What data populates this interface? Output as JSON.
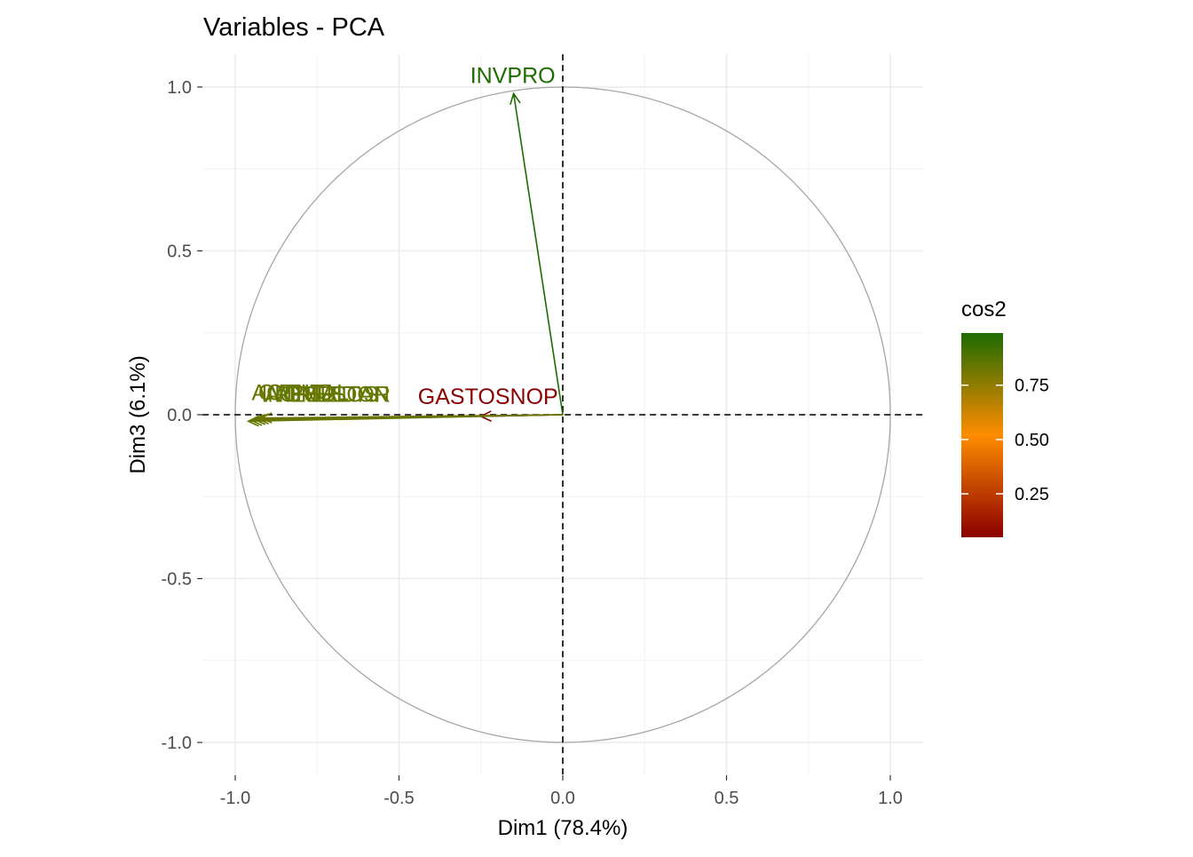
{
  "chart_data": {
    "type": "scatter",
    "title": "Variables - PCA",
    "xlabel": "Dim1 (78.4%)",
    "ylabel": "Dim3 (6.1%)",
    "xlim": [
      -1.1,
      1.1
    ],
    "ylim": [
      -1.1,
      1.1
    ],
    "x_ticks": [
      -1.0,
      -0.5,
      0.0,
      0.5,
      1.0
    ],
    "x_tick_labels": [
      "-1.0",
      "-0.5",
      "0.0",
      "0.5",
      "1.0"
    ],
    "y_ticks": [
      -1.0,
      -0.5,
      0.0,
      0.5,
      1.0
    ],
    "y_tick_labels": [
      "-1.0",
      "-0.5",
      "0.0",
      "0.5",
      "1.0"
    ],
    "grid": true,
    "unit_circle": true,
    "reference_lines": "dashed at x=0 and y=0",
    "variables": [
      {
        "name": "INVPRO",
        "x": -0.15,
        "y": 0.98,
        "cos2": 0.98,
        "color": "#1E6B00"
      },
      {
        "name": "GASTOSNOP",
        "x": -0.25,
        "y": -0.005,
        "cos2": 0.07,
        "color": "#8B0000"
      },
      {
        "name": "",
        "x": -0.96,
        "y": -0.02,
        "cos2": 0.9,
        "color": "#5E7A00"
      },
      {
        "name": "",
        "x": -0.95,
        "y": -0.018,
        "cos2": 0.9,
        "color": "#627800"
      },
      {
        "name": "",
        "x": -0.94,
        "y": -0.015,
        "cos2": 0.88,
        "color": "#667600"
      },
      {
        "name": "",
        "x": -0.93,
        "y": -0.013,
        "cos2": 0.88,
        "color": "#6B7400"
      },
      {
        "name": "",
        "x": -0.92,
        "y": -0.01,
        "cos2": 0.86,
        "color": "#6E7300"
      }
    ],
    "overlapping_labels": [
      {
        "text": "ACREEDOR",
        "x": -0.91,
        "y": 0.05,
        "color": "#6E7300"
      },
      {
        "text": "CAPITAL",
        "x": -0.93,
        "y": 0.055,
        "color": "#667600"
      },
      {
        "text": "RESULTAN",
        "x": -0.88,
        "y": 0.05,
        "color": "#627800"
      },
      {
        "text": "INGRESOS",
        "x": -0.92,
        "y": 0.05,
        "color": "#5E7A00"
      },
      {
        "text": "ACTIVO",
        "x": -0.95,
        "y": 0.055,
        "color": "#6B7400"
      }
    ],
    "legend": {
      "title": "cos2",
      "placement": "right",
      "ticks": [
        "0.25",
        "0.50",
        "0.75"
      ],
      "tick_values": [
        0.25,
        0.5,
        0.75
      ],
      "range": [
        0.05,
        0.99
      ],
      "colors": [
        "#8B0000",
        "#FF8C00",
        "#1E6B00"
      ]
    }
  }
}
